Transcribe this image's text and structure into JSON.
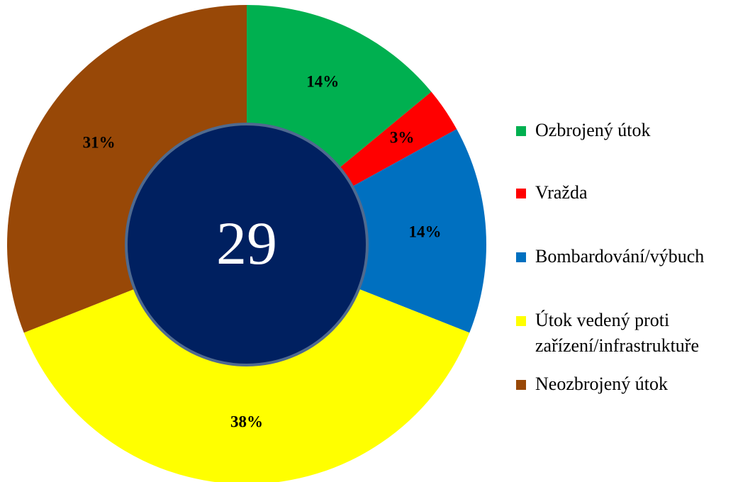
{
  "chart_data": {
    "type": "donut",
    "categories": [
      "Ozbrojený útok",
      "Vražda",
      "Bombardování/výbuch",
      "Útok vedený proti zařízení/infrastruktuře",
      "Neozbrojený útok"
    ],
    "values": [
      14,
      3,
      14,
      38,
      31
    ],
    "value_labels": [
      "14%",
      "3%",
      "14%",
      "38%",
      "31%"
    ],
    "colors": [
      "#00b050",
      "#ff0000",
      "#0070c0",
      "#ffff00",
      "#984807"
    ],
    "center_label": "29",
    "legend": "right"
  }
}
